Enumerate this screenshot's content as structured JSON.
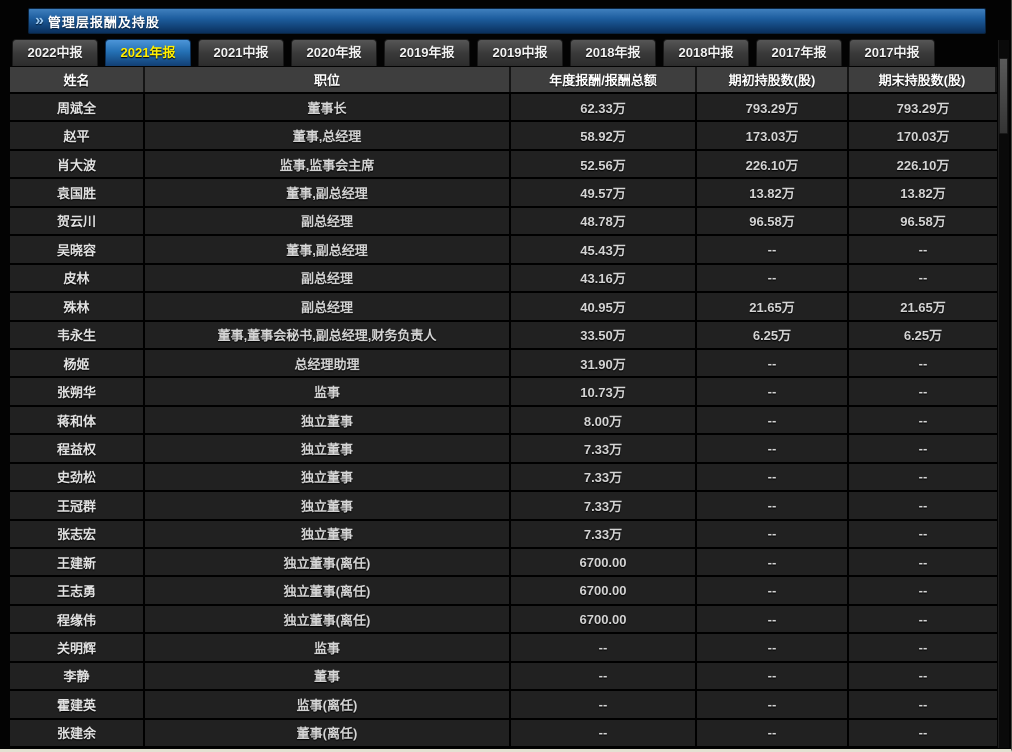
{
  "colors": {
    "titlebar_blue": "#1d5d9e",
    "active_tab_blue": "#2470b4",
    "active_tab_text": "#ffee00",
    "table_row_bg": "#212121",
    "table_header_bg": "#3e3e3e"
  },
  "title_bar": {
    "chevron": "»",
    "title": "管理层报酬及持股"
  },
  "tabs": [
    {
      "label": "2022中报",
      "active": false
    },
    {
      "label": "2021年报",
      "active": true
    },
    {
      "label": "2021中报",
      "active": false
    },
    {
      "label": "2020年报",
      "active": false
    },
    {
      "label": "2019年报",
      "active": false
    },
    {
      "label": "2019中报",
      "active": false
    },
    {
      "label": "2018年报",
      "active": false
    },
    {
      "label": "2018中报",
      "active": false
    },
    {
      "label": "2017年报",
      "active": false
    },
    {
      "label": "2017中报",
      "active": false
    }
  ],
  "table": {
    "columns": [
      "姓名",
      "职位",
      "年度报酬/报酬总额",
      "期初持股数(股)",
      "期末持股数(股)"
    ],
    "rows": [
      [
        "周斌全",
        "董事长",
        "62.33万",
        "793.29万",
        "793.29万"
      ],
      [
        "赵平",
        "董事,总经理",
        "58.92万",
        "173.03万",
        "170.03万"
      ],
      [
        "肖大波",
        "监事,监事会主席",
        "52.56万",
        "226.10万",
        "226.10万"
      ],
      [
        "袁国胜",
        "董事,副总经理",
        "49.57万",
        "13.82万",
        "13.82万"
      ],
      [
        "贺云川",
        "副总经理",
        "48.78万",
        "96.58万",
        "96.58万"
      ],
      [
        "吴晓容",
        "董事,副总经理",
        "45.43万",
        "--",
        "--"
      ],
      [
        "皮林",
        "副总经理",
        "43.16万",
        "--",
        "--"
      ],
      [
        "殊林",
        "副总经理",
        "40.95万",
        "21.65万",
        "21.65万"
      ],
      [
        "韦永生",
        "董事,董事会秘书,副总经理,财务负责人",
        "33.50万",
        "6.25万",
        "6.25万"
      ],
      [
        "杨姬",
        "总经理助理",
        "31.90万",
        "--",
        "--"
      ],
      [
        "张朔华",
        "监事",
        "10.73万",
        "--",
        "--"
      ],
      [
        "蒋和体",
        "独立董事",
        "8.00万",
        "--",
        "--"
      ],
      [
        "程益权",
        "独立董事",
        "7.33万",
        "--",
        "--"
      ],
      [
        "史劲松",
        "独立董事",
        "7.33万",
        "--",
        "--"
      ],
      [
        "王冠群",
        "独立董事",
        "7.33万",
        "--",
        "--"
      ],
      [
        "张志宏",
        "独立董事",
        "7.33万",
        "--",
        "--"
      ],
      [
        "王建新",
        "独立董事(离任)",
        "6700.00",
        "--",
        "--"
      ],
      [
        "王志勇",
        "独立董事(离任)",
        "6700.00",
        "--",
        "--"
      ],
      [
        "程缘伟",
        "独立董事(离任)",
        "6700.00",
        "--",
        "--"
      ],
      [
        "关明辉",
        "监事",
        "--",
        "--",
        "--"
      ],
      [
        "李静",
        "董事",
        "--",
        "--",
        "--"
      ],
      [
        "霍建英",
        "监事(离任)",
        "--",
        "--",
        "--"
      ],
      [
        "张建余",
        "董事(离任)",
        "--",
        "--",
        "--"
      ]
    ]
  }
}
